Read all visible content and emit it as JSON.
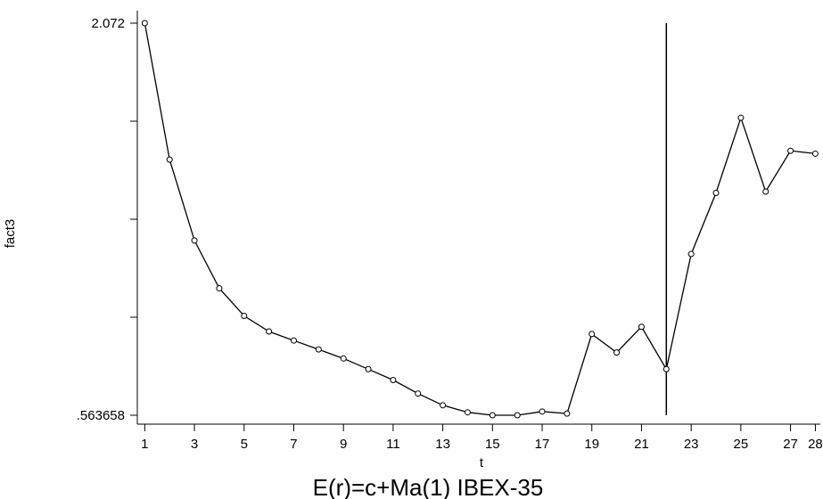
{
  "chart_data": {
    "type": "line",
    "title": "E(r)=c+Ma(1) IBEX-35",
    "xlabel": "t",
    "ylabel": "fact3",
    "x_ticks": [
      "1",
      "3",
      "5",
      "7",
      "9",
      "11",
      "13",
      "15",
      "17",
      "19",
      "21",
      "23",
      "25",
      "27",
      "28"
    ],
    "y_tick_labels": [
      "2.072",
      ".563658"
    ],
    "xlim": [
      0.7,
      28.2
    ],
    "ylim": [
      0.563658,
      2.072
    ],
    "vertical_line_x": 22,
    "x": [
      1,
      2,
      3,
      4,
      5,
      6,
      7,
      8,
      9,
      10,
      11,
      12,
      13,
      14,
      15,
      16,
      17,
      18,
      19,
      20,
      21,
      22,
      23,
      24,
      25,
      26,
      27,
      28
    ],
    "y": [
      2.072,
      1.547,
      1.236,
      1.052,
      0.946,
      0.886,
      0.851,
      0.817,
      0.782,
      0.741,
      0.699,
      0.647,
      0.602,
      0.575,
      0.563658,
      0.563658,
      0.578,
      0.57,
      0.876,
      0.805,
      0.904,
      0.741,
      1.184,
      1.419,
      1.708,
      1.424,
      1.581,
      1.57
    ],
    "grid": false,
    "legend": "none",
    "colors": {
      "line": "#000000",
      "marker": "#000000",
      "background": "#ffffff"
    }
  }
}
